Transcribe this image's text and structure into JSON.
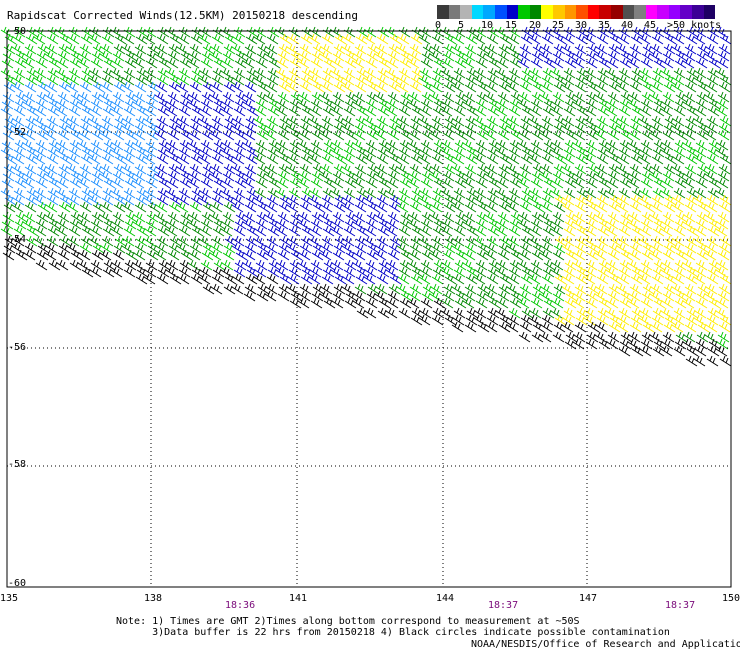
{
  "title": "Rapidscat Corrected Winds(12.5KM) 20150218 descending",
  "legend": {
    "colors": [
      "#3a3a3a",
      "#7a7a7a",
      "#b4b4b4",
      "#00d8ff",
      "#00a8ff",
      "#0050ff",
      "#0000c8",
      "#00c800",
      "#008800",
      "#ffff00",
      "#ffc800",
      "#ff9600",
      "#ff5000",
      "#ff0000",
      "#c80000",
      "#960000",
      "#505050",
      "#808080",
      "#ff00ff",
      "#c800ff",
      "#9600ff",
      "#6400c8",
      "#3c0096",
      "#1e0064"
    ],
    "ticks": [
      "0",
      "5",
      "10",
      "15",
      "20",
      "25",
      "30",
      "35",
      "40",
      "45",
      ">50 knots"
    ]
  },
  "lat_labels": [
    "-50",
    "-52",
    "-54",
    "-56",
    "-58",
    "-60"
  ],
  "lon_labels": [
    "135",
    "138",
    "141",
    "144",
    "147",
    "150"
  ],
  "time_labels": [
    "18:36",
    "18:37",
    "18:37"
  ],
  "notes": [
    "Note: 1) Times are GMT 2)Times along bottom correspond to measurement at ~50S",
    "      3)Data buffer is 22 hrs from 20150218 4) Black circles indicate possible contamination"
  ],
  "credit": "NOAA/NESDIS/Office of Research and Applications",
  "wind_colors": {
    "black": "#000000",
    "blue_dark": "#0000c8",
    "blue_light": "#1e90ff",
    "green_dark": "#008800",
    "green_light": "#00c800",
    "yellow": "#ffee00"
  }
}
